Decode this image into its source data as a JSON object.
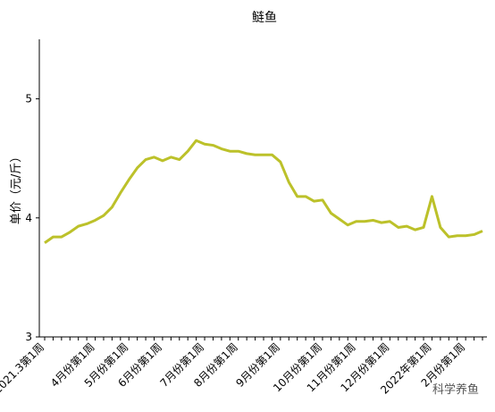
{
  "chart_data": {
    "type": "line",
    "title": "鲢鱼",
    "y_label": "单价（元/斤）",
    "categories": [
      "2021.3第1周",
      null,
      null,
      null,
      null,
      null,
      "4月份第1周",
      null,
      null,
      null,
      "5月份第1周",
      null,
      null,
      null,
      "6月份第1周",
      null,
      null,
      null,
      null,
      "7月份第1周",
      null,
      null,
      null,
      "8月份第1周",
      null,
      null,
      null,
      null,
      "9月份第1周",
      null,
      null,
      null,
      null,
      "10月份第1周",
      null,
      null,
      null,
      "11月份第1周",
      null,
      null,
      null,
      "12月份第1周",
      null,
      null,
      null,
      null,
      "2022年第1周",
      null,
      null,
      null,
      "2月份第1周",
      null,
      null
    ],
    "series": [
      {
        "name": "鲢鱼",
        "color": "#bcc12a",
        "values": [
          3.79,
          3.84,
          3.84,
          3.88,
          3.93,
          3.95,
          3.98,
          4.02,
          4.09,
          4.21,
          4.32,
          4.42,
          4.49,
          4.51,
          4.48,
          4.51,
          4.49,
          4.56,
          4.65,
          4.62,
          4.61,
          4.58,
          4.56,
          4.56,
          4.54,
          4.53,
          4.53,
          4.53,
          4.47,
          4.3,
          4.18,
          4.18,
          4.14,
          4.15,
          4.04,
          3.99,
          3.94,
          3.97,
          3.97,
          3.98,
          3.96,
          3.97,
          3.92,
          3.93,
          3.9,
          3.92,
          4.18,
          3.92,
          3.84,
          3.85,
          3.85,
          3.86,
          3.89
        ]
      }
    ],
    "ylim": [
      3,
      5.5
    ],
    "yticks": [
      3,
      4,
      5
    ],
    "watermark": "科学养鱼"
  }
}
